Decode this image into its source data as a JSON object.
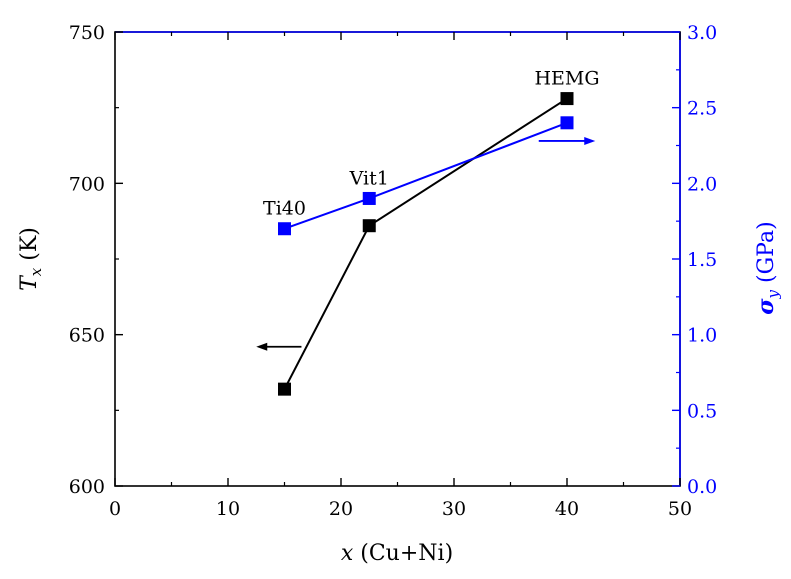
{
  "chart_data": {
    "type": "line",
    "x": [
      15,
      22.5,
      40
    ],
    "xlim": [
      0,
      50
    ],
    "xticks": [
      0,
      10,
      20,
      30,
      40,
      50
    ],
    "xtick_labels": [
      "0",
      "10",
      "20",
      "30",
      "40",
      "50"
    ],
    "xlabel": {
      "var": "x",
      "rest": " (Cu+Ni)"
    },
    "ylim_left": [
      600,
      750
    ],
    "yticks_left": [
      600,
      650,
      700,
      750
    ],
    "ytick_labels_left": [
      "600",
      "650",
      "700",
      "750"
    ],
    "ylabel_left": {
      "var": "T",
      "sub": "x",
      "rest": " (K)"
    },
    "ylim_right": [
      0.0,
      3.0
    ],
    "yticks_right": [
      0.0,
      0.5,
      1.0,
      1.5,
      2.0,
      2.5,
      3.0
    ],
    "ytick_labels_right": [
      "0.0",
      "0.5",
      "1.0",
      "1.5",
      "2.0",
      "2.5",
      "3.0"
    ],
    "ylabel_right": {
      "var": "σ",
      "sub": "y",
      "rest": " (GPa)"
    },
    "series": [
      {
        "axis": "left",
        "color": "#000000",
        "values": [
          632,
          686,
          728
        ]
      },
      {
        "axis": "right",
        "color": "#0000ff",
        "values": [
          1.7,
          1.9,
          2.4
        ]
      }
    ],
    "point_labels": [
      "Ti40",
      "Vit1",
      "HEMG"
    ],
    "grid": false,
    "arrows": [
      {
        "axis": "left",
        "direction": "left",
        "x_from": 16.5,
        "x_to": 12.5,
        "y": 646,
        "color": "#000000"
      },
      {
        "axis": "right",
        "direction": "right",
        "x_from": 37.5,
        "x_to": 42.5,
        "y": 2.28,
        "color": "#0000ff"
      }
    ]
  }
}
